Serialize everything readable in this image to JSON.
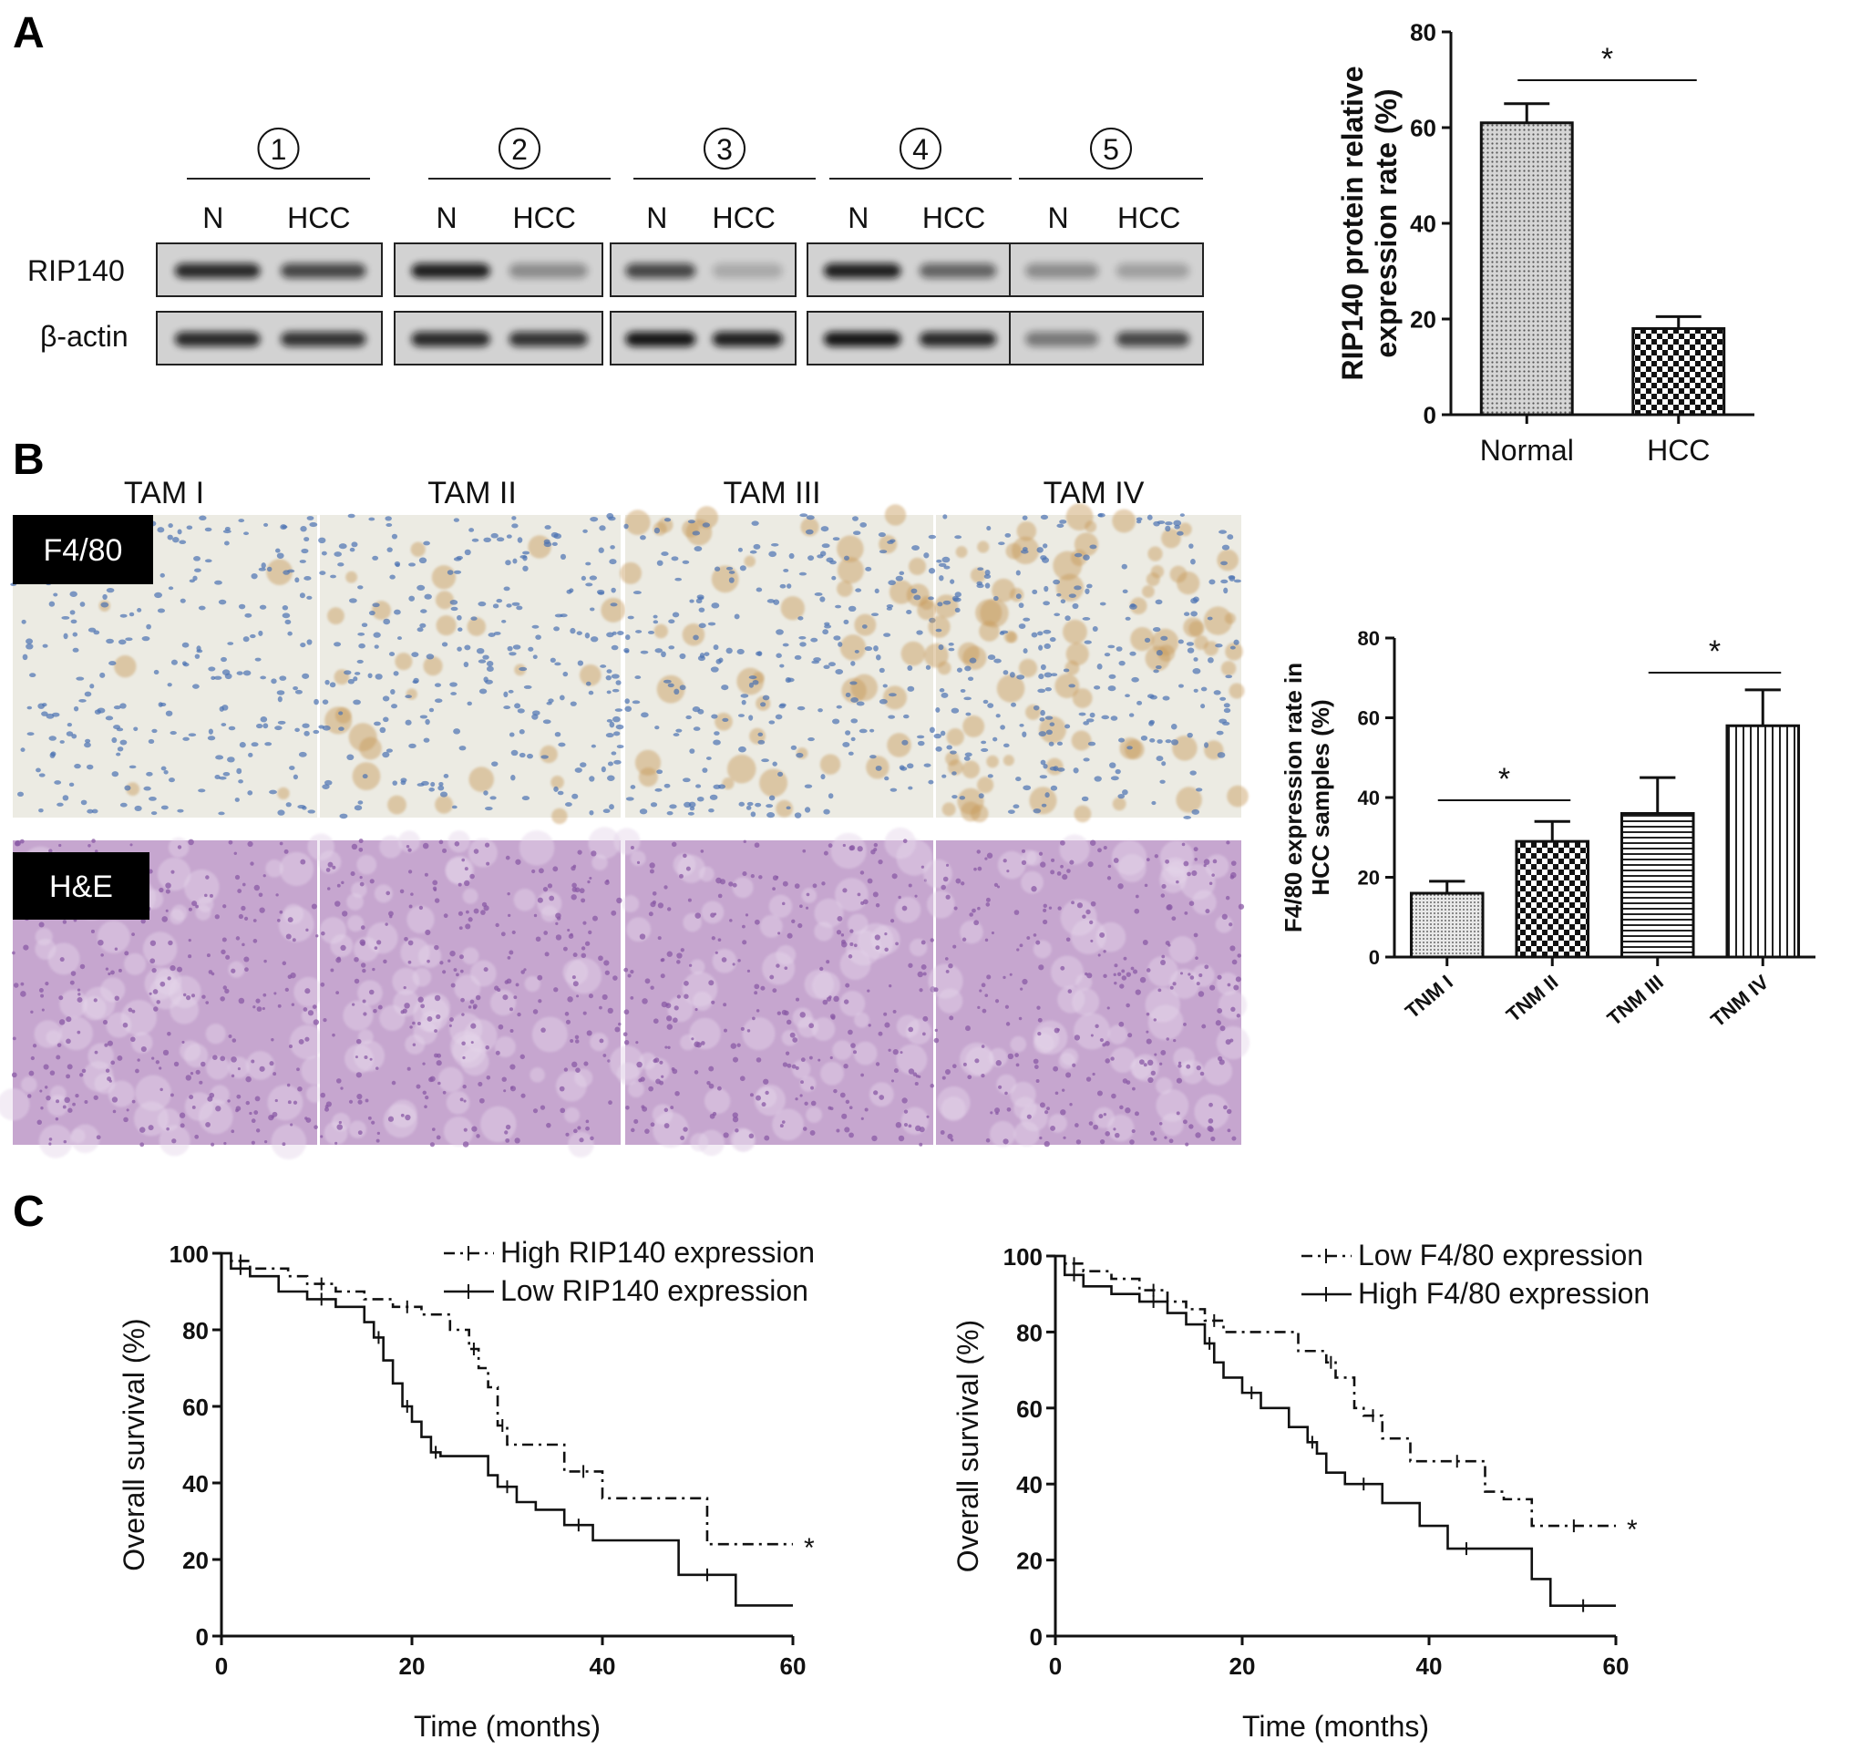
{
  "panels": {
    "A": "A",
    "B": "B",
    "C": "C"
  },
  "western_blot": {
    "samples": [
      "①",
      "②",
      "③",
      "④",
      "⑤"
    ],
    "lane_labels": [
      "N",
      "HCC"
    ],
    "rows": [
      "RIP140",
      "β-actin"
    ]
  },
  "histology": {
    "columns": [
      "TAM I",
      "TAM  II",
      "TAM III",
      "TAM IV"
    ],
    "rows": [
      "F4/80",
      "H&E"
    ],
    "colors": {
      "f480_background": "#ecebe3",
      "f480_nuclei": "#4b72b2",
      "f480_stain": "#c79a5a",
      "he_background": "#c6a6cf",
      "he_nuclei": "#8a5aa6"
    }
  },
  "chart_data": [
    {
      "type": "bar",
      "id": "rip140_bar",
      "categories": [
        "Normal",
        "HCC"
      ],
      "values": [
        61,
        18
      ],
      "errors": [
        4,
        2.5
      ],
      "ylabel_lines": [
        "RIP140 protein relative",
        "expression rate (%)"
      ],
      "ylim": [
        0,
        80
      ],
      "yticks": [
        0,
        20,
        40,
        60,
        80
      ],
      "significance": [
        {
          "from": 0,
          "to": 1,
          "label": "*"
        }
      ]
    },
    {
      "type": "bar",
      "id": "f480_bar",
      "categories": [
        "TNM I",
        "TNM II",
        "TNM III",
        "TNM IV"
      ],
      "values": [
        16,
        29,
        36,
        58
      ],
      "errors": [
        3,
        5,
        9,
        9
      ],
      "ylabel_lines": [
        "F4/80 expression rate in",
        "HCC samples (%)"
      ],
      "ylim": [
        0,
        80
      ],
      "yticks": [
        0,
        20,
        40,
        60,
        80
      ],
      "significance": [
        {
          "from": 0,
          "to": 1,
          "label": "*"
        },
        {
          "from": 2,
          "to": 3,
          "label": "*"
        }
      ]
    },
    {
      "type": "line",
      "id": "km_rip140",
      "xlabel": "Time (months)",
      "ylabel": "Overall survival (%)",
      "xlim": [
        0,
        60
      ],
      "ylim": [
        0,
        100
      ],
      "xticks": [
        0,
        20,
        40,
        60
      ],
      "yticks": [
        0,
        20,
        40,
        60,
        80,
        100
      ],
      "annotation": "*",
      "series": [
        {
          "name": "High RIP140 expression",
          "style": "dashed",
          "x": [
            0,
            1,
            3,
            7,
            9,
            12,
            15,
            18,
            21,
            24,
            26,
            27,
            28,
            29,
            30,
            32,
            36,
            40,
            51,
            60
          ],
          "y": [
            100,
            98,
            96,
            94,
            92,
            90,
            88,
            86,
            84,
            80,
            75,
            70,
            65,
            55,
            50,
            50,
            43,
            36,
            24,
            24
          ]
        },
        {
          "name": "Low RIP140 expression",
          "style": "solid",
          "x": [
            0,
            1,
            3,
            6,
            9,
            12,
            15,
            16,
            17,
            18,
            19,
            20,
            21,
            22,
            23,
            28,
            29,
            31,
            33,
            36,
            39,
            40,
            48,
            54,
            60
          ],
          "y": [
            100,
            96,
            94,
            90,
            88,
            86,
            82,
            78,
            72,
            66,
            60,
            56,
            52,
            48,
            47,
            42,
            39,
            35,
            33,
            29,
            25,
            25,
            16,
            8,
            8
          ]
        }
      ]
    },
    {
      "type": "line",
      "id": "km_f480",
      "xlabel": "Time (months)",
      "ylabel": "Overall survival (%)",
      "xlim": [
        0,
        60
      ],
      "ylim": [
        0,
        100
      ],
      "xticks": [
        0,
        20,
        40,
        60
      ],
      "yticks": [
        0,
        20,
        40,
        60,
        80,
        100
      ],
      "annotation": "*",
      "series": [
        {
          "name": "Low F4/80 expression",
          "style": "dashed",
          "x": [
            0,
            1,
            3,
            6,
            9,
            12,
            14,
            16,
            18,
            26,
            29,
            30,
            32,
            33,
            35,
            38,
            40,
            46,
            48,
            51,
            60
          ],
          "y": [
            100,
            98,
            96,
            94,
            91,
            88,
            86,
            83,
            80,
            75,
            72,
            68,
            60,
            58,
            52,
            46,
            46,
            38,
            36,
            29,
            29
          ]
        },
        {
          "name": "High F4/80 expression",
          "style": "solid",
          "x": [
            0,
            1,
            3,
            6,
            9,
            12,
            14,
            16,
            17,
            18,
            20,
            22,
            25,
            27,
            28,
            29,
            31,
            35,
            39,
            42,
            46,
            51,
            53,
            60
          ],
          "y": [
            100,
            95,
            92,
            90,
            88,
            85,
            82,
            77,
            72,
            68,
            64,
            60,
            55,
            51,
            48,
            43,
            40,
            35,
            29,
            23,
            23,
            15,
            8,
            8
          ]
        }
      ]
    }
  ]
}
